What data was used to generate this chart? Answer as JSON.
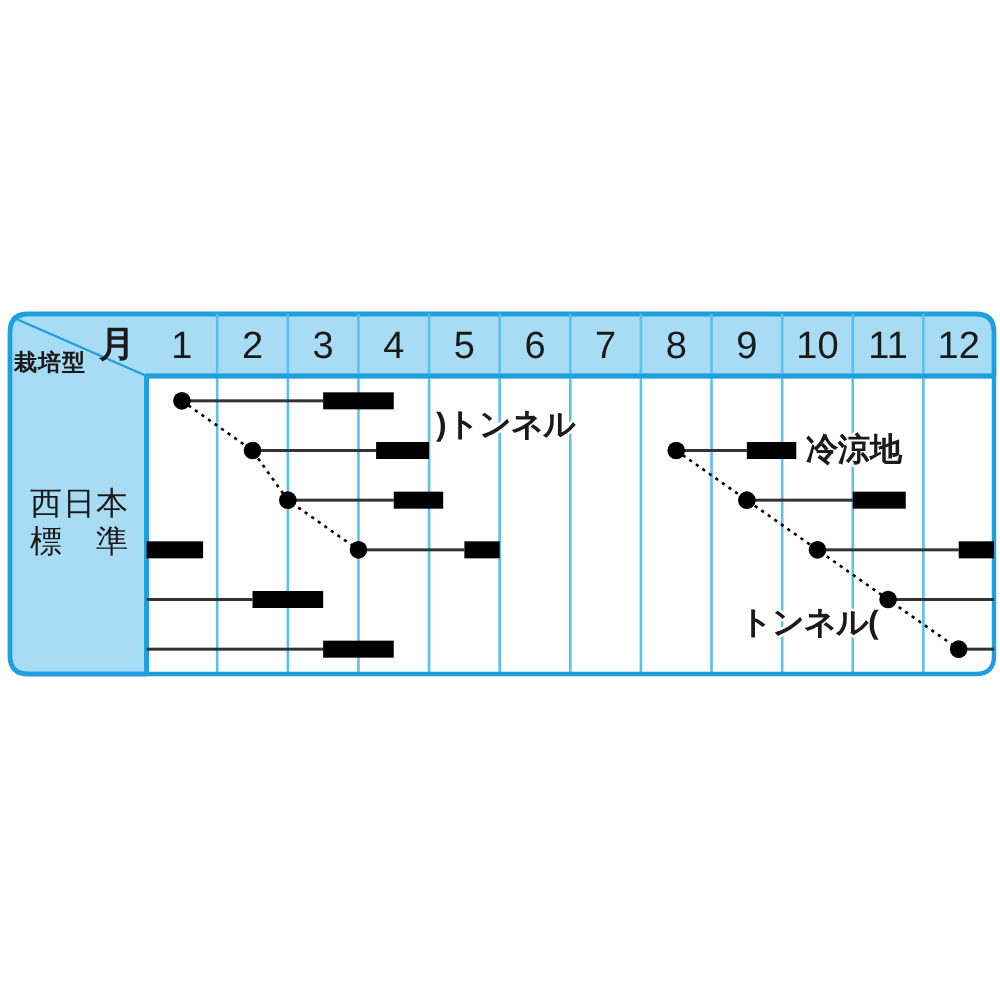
{
  "chart_data": {
    "type": "bar",
    "orientation": "horizontal",
    "xlabel": "月",
    "ylabel": "栽培型",
    "categories": [
      null,
      null,
      null,
      null,
      null,
      null
    ],
    "xlim": [
      0.5,
      12.5
    ],
    "xticks": [
      {
        "value": 0.5,
        "label": null
      },
      1,
      {
        "value": 1.5,
        "label": null
      },
      2,
      {
        "value": 2.5,
        "label": null
      },
      3,
      {
        "value": 3.5,
        "label": null
      },
      4,
      {
        "value": 4.5,
        "label": null
      },
      5,
      {
        "value": 5.5,
        "label": null
      },
      6,
      {
        "value": 6.5,
        "label": null
      },
      7,
      {
        "value": 7.5,
        "label": null
      },
      8,
      {
        "value": 8.5,
        "label": null
      },
      9,
      {
        "value": 9.5,
        "label": null
      },
      10,
      {
        "value": 10.5,
        "label": null
      },
      11,
      {
        "value": 11.5,
        "label": null
      },
      12,
      {
        "value": 12.5,
        "label": null
      }
    ],
    "grid": "x",
    "series": [
      {
        "color": "#333333",
        "base": [
          1.0,
          2.0,
          2.5,
          3.5,
          0.5,
          0.5
        ],
        "values": [
          2.0,
          1.75,
          1.5,
          1.5,
          1.5,
          2.5
        ]
      },
      {
        "color": "#333333",
        "base": [
          null,
          8.0,
          9.0,
          10.0,
          11.0,
          12.0
        ],
        "values": [
          null,
          1.0,
          1.5,
          2.0,
          1.5,
          0.5
        ]
      },
      {
        "color": "#000000",
        "base": [
          3.0,
          3.75,
          4.0,
          5.0,
          2.0,
          3.0
        ],
        "values": [
          1.0,
          0.75,
          0.7,
          0.5,
          1.0,
          1.0
        ]
      },
      {
        "color": "#000000",
        "base": [
          null,
          9.0,
          10.5,
          12.0,
          null,
          null
        ],
        "values": [
          null,
          0.7,
          0.75,
          0.5,
          null,
          null
        ]
      },
      {
        "color": "#000000",
        "base": [
          null,
          null,
          null,
          0.5,
          null,
          null
        ],
        "values": [
          null,
          null,
          null,
          0.8,
          null,
          null
        ]
      },
      {
        "type": "line",
        "color": "#000000",
        "line_style": "dotted",
        "marker": "circle",
        "values": [
          1.0,
          2.0,
          2.5,
          3.5,
          null,
          null
        ]
      },
      {
        "type": "line",
        "color": "#000000",
        "line_style": "dotted",
        "marker": "circle",
        "values": [
          null,
          8.0,
          9.0,
          10.0,
          11.0,
          12.0
        ]
      }
    ],
    "annotations": [
      "西日本標準",
      ")トンネル",
      "冷涼地",
      "トンネル("
    ]
  }
}
